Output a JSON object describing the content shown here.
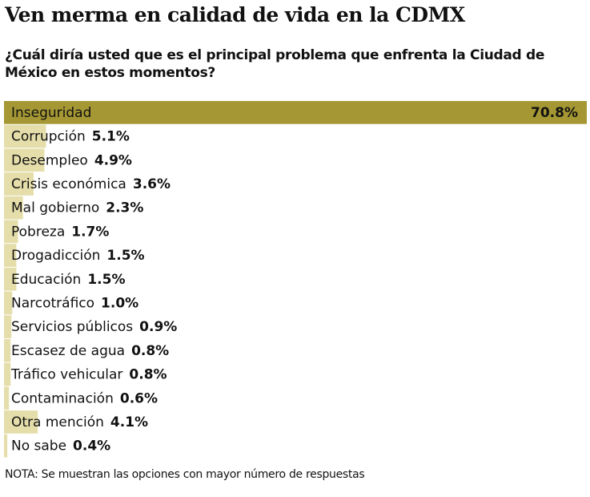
{
  "chart_data": {
    "type": "bar",
    "orientation": "horizontal",
    "title": "Ven merma en calidad de vida en la CDMX",
    "subtitle": "¿Cuál diría usted que es el principal problema que enfrenta la Ciudad de México en estos momentos?",
    "categories": [
      "Inseguridad",
      "Corrupción",
      "Desempleo",
      "Crisis económica",
      "Mal gobierno",
      "Pobreza",
      "Drogadicción",
      "Educación",
      "Narcotráfico",
      "Servicios públicos",
      "Escasez de agua",
      "Tráfico vehicular",
      "Contaminación",
      "Otra mención",
      "No sabe"
    ],
    "values": [
      70.8,
      5.1,
      4.9,
      3.6,
      2.3,
      1.7,
      1.5,
      1.5,
      1.0,
      0.9,
      0.8,
      0.8,
      0.6,
      4.1,
      0.4
    ],
    "value_labels": [
      "70.8%",
      "5.1%",
      "4.9%",
      "3.6%",
      "2.3%",
      "1.7%",
      "1.5%",
      "1.5%",
      "1.0%",
      "0.9%",
      "0.8%",
      "0.8%",
      "0.6%",
      "4.1%",
      "0.4%"
    ],
    "colors": [
      "#a59834",
      "#e5deaa",
      "#e5deaa",
      "#e5deaa",
      "#e5deaa",
      "#e5deaa",
      "#e5deaa",
      "#e5deaa",
      "#e5deaa",
      "#e5deaa",
      "#e5deaa",
      "#e5deaa",
      "#e5deaa",
      "#e5deaa",
      "#e5deaa"
    ],
    "note": "NOTA: Se muestran las opciones con mayor número de respuestas"
  }
}
